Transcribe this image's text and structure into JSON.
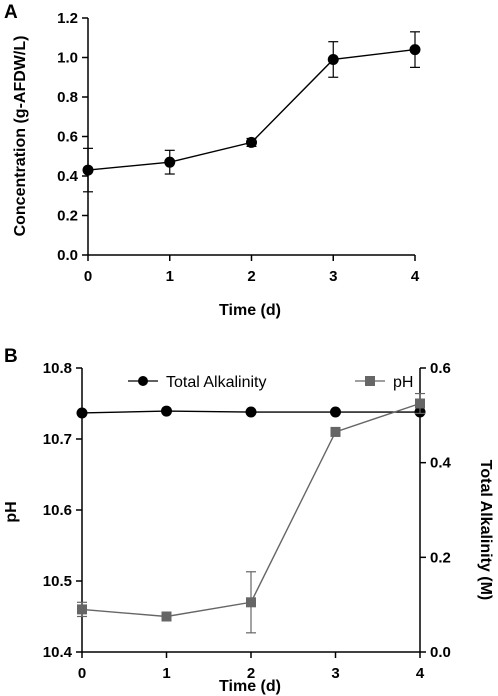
{
  "chart_data": [
    {
      "panel": "A",
      "type": "line",
      "xlabel": "Time (d)",
      "ylabel": "Concentration (g-AFDW/L)",
      "x": [
        0,
        1,
        2,
        3,
        4
      ],
      "xlim": [
        0,
        4
      ],
      "ylim": [
        0,
        1.2
      ],
      "x_ticks": [
        "0",
        "1",
        "2",
        "3",
        "4"
      ],
      "y_ticks": [
        "0.0",
        "0.2",
        "0.4",
        "0.6",
        "0.8",
        "1.0",
        "1.2"
      ],
      "series": [
        {
          "values": [
            0.43,
            0.47,
            0.57,
            0.99,
            1.04
          ],
          "error": [
            0.11,
            0.06,
            0.02,
            0.09,
            0.09
          ],
          "marker": "circle",
          "color": "#000000"
        }
      ]
    },
    {
      "panel": "B",
      "type": "line",
      "xlabel": "Time (d)",
      "ylabel": "pH",
      "y2label": "Total Alkalinity (M)",
      "x": [
        0,
        1,
        2,
        3,
        4
      ],
      "xlim": [
        0,
        4
      ],
      "ylim": [
        10.4,
        10.8
      ],
      "y2lim": [
        0,
        0.6
      ],
      "x_ticks": [
        "0",
        "1",
        "2",
        "3",
        "4"
      ],
      "y_ticks": [
        "10.4",
        "10.5",
        "10.6",
        "10.7",
        "10.8"
      ],
      "y2_ticks": [
        "0.0",
        "0.2",
        "0.4",
        "0.6"
      ],
      "legend_position": "top-center",
      "series": [
        {
          "name": "Total Alkalinity",
          "axis": "right",
          "values": [
            0.505,
            0.509,
            0.507,
            0.507,
            0.507
          ],
          "error": [
            0,
            0,
            0,
            0,
            0
          ],
          "marker": "circle",
          "color": "#000000"
        },
        {
          "name": "pH",
          "axis": "left",
          "values": [
            10.46,
            10.45,
            10.47,
            10.71,
            10.75
          ],
          "error": [
            0.01,
            0.005,
            0.043,
            0.006,
            0.014
          ],
          "marker": "square",
          "color": "#666666"
        }
      ]
    }
  ]
}
